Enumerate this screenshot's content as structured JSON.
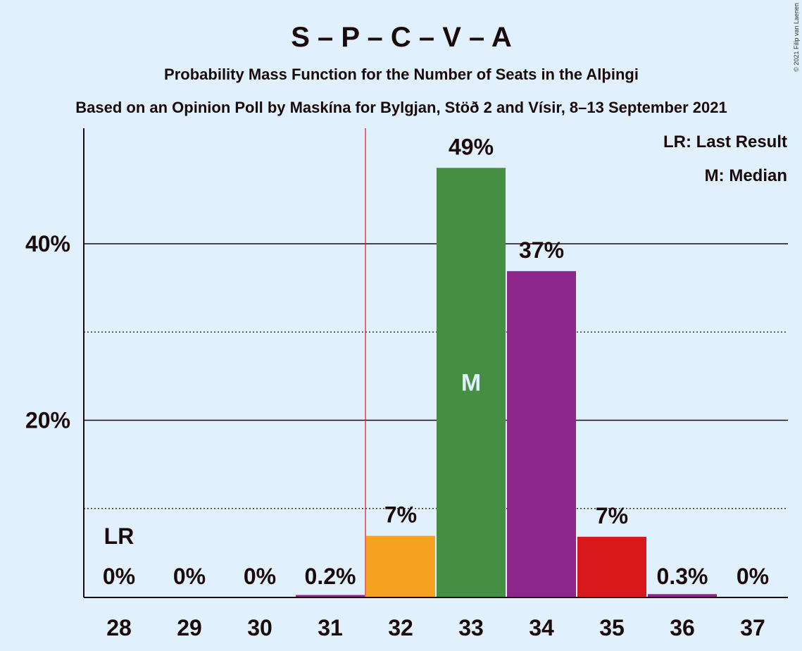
{
  "chart_data": {
    "type": "bar",
    "title": "S – P – C – V – A",
    "subtitle": "Probability Mass Function for the Number of Seats in the Alþingi",
    "source": "Based on an Opinion Poll by Maskína for Bylgjan, Stöð 2 and Vísir, 8–13 September 2021",
    "copyright": "© 2021 Filip van Laenen",
    "legend": [
      "LR: Last Result",
      "M: Median"
    ],
    "legend_position": "top-right",
    "categories": [
      "28",
      "29",
      "30",
      "31",
      "32",
      "33",
      "34",
      "35",
      "36",
      "37"
    ],
    "values": [
      0,
      0,
      0,
      0.2,
      7,
      49,
      37,
      7,
      0.3,
      0
    ],
    "plot_values": [
      0,
      0,
      0,
      0.2,
      6.9,
      48.6,
      36.9,
      6.8,
      0.3,
      0
    ],
    "bar_labels": [
      "0%",
      "0%",
      "0%",
      "0.2%",
      "7%",
      "49%",
      "37%",
      "7%",
      "0.3%",
      "0%"
    ],
    "bar_colors": [
      "#e1f0fd",
      "#e1f0fd",
      "#e1f0fd",
      "#8e278c",
      "#f4a21f",
      "#468e42",
      "#8e278c",
      "#d7191c",
      "#8e278c",
      "#e1f0fd"
    ],
    "last_result": "31.5",
    "last_result_label": "LR",
    "last_result_category": "28",
    "median_label": "M",
    "median_category": "33",
    "yticks": [
      20,
      40
    ],
    "ytick_labels": [
      "20%",
      "40%"
    ],
    "ylim": [
      0,
      53
    ],
    "grid": true,
    "xlabel": "",
    "ylabel": ""
  }
}
